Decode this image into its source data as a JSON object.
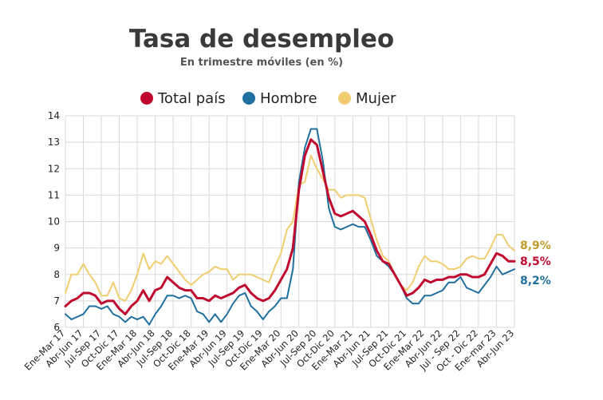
{
  "chart_data": {
    "type": "line",
    "title": "Tasa de desempleo",
    "subtitle": "En trimestre móviles (en %)",
    "ylim": [
      6,
      14
    ],
    "yticks": [
      6,
      7,
      8,
      9,
      10,
      11,
      12,
      13,
      14
    ],
    "grid": true,
    "legend_position": "top",
    "x": [
      "Ene-Mar 17",
      "Feb-Abr 17",
      "Mar-May 17",
      "Abr-Jun 17",
      "May-Jul 17",
      "Jun-Ago 17",
      "Jul-Sep 17",
      "Ago-Oct 17",
      "Sep-Nov 17",
      "Oct-Dic 17",
      "Nov-Ene 18",
      "Dic-Feb 18",
      "Ene-Mar 18",
      "Feb-Abr 18",
      "Mar-May 18",
      "Abr-Jun 18",
      "May-Jul 18",
      "Jun-Ago 18",
      "Jul-Sep 18",
      "Ago-Oct 18",
      "Sep-Nov 18",
      "Oct-Dic 18",
      "Nov-Ene 19",
      "Dic-Feb 19",
      "Ene-Mar 19",
      "Feb-Abr 19",
      "Mar-May 19",
      "Abr-Jun 19",
      "May-Jul 19",
      "Jun-Ago 19",
      "Jul-Sep 19",
      "Ago-Oct 19",
      "Sep-Nov 19",
      "Oct-Dic 19",
      "Nov-Ene 20",
      "Dic-Feb 20",
      "Ene-Mar 20",
      "Feb-Abr 20",
      "Mar-May 20",
      "Abr-Jun 20",
      "May-Jul 20",
      "Jun-Ago 20",
      "Jul-Sep 20",
      "Ago-Oct 20",
      "Sep-Nov 20",
      "Oct-Dic 20",
      "Nov-Ene 21",
      "Dic-Feb 21",
      "Ene-Mar 21",
      "Feb-Abr 21",
      "Mar-May 21",
      "Abr-Jun 21",
      "May-Jul 21",
      "Jun-Ago 21",
      "Jul-Sep 21",
      "Ago-Oct 21",
      "Sep-Nov 21",
      "Oct-Dic 21",
      "Nov-Ene 22",
      "Dic-Feb 22",
      "Ene-Mar 22",
      "Feb-Abr 22",
      "Mar-May 22",
      "Abr-Jun 22",
      "May-Jul 22",
      "Jun-Ago 22",
      "Jul - Sep 22",
      "Ago-Oct 22",
      "Sep-Nov 22",
      "Oct - Dic 22",
      "Nov-Ene 23",
      "Dic-Feb 23",
      "Ene-mar 23",
      "Feb-Abr 23",
      "Mar-May 23",
      "Abr-Jun 23"
    ],
    "xtick_labels": [
      {
        "index": 0,
        "label": "Ene-Mar 17"
      },
      {
        "index": 3,
        "label": "Abr-Jun 17"
      },
      {
        "index": 6,
        "label": "Jul-Sep 17"
      },
      {
        "index": 9,
        "label": "Oct-Dic 17"
      },
      {
        "index": 12,
        "label": "Ene-Mar 18"
      },
      {
        "index": 15,
        "label": "Abr-Jun 18"
      },
      {
        "index": 18,
        "label": "Jul-Sep 18"
      },
      {
        "index": 21,
        "label": "Oct-Dic 18"
      },
      {
        "index": 24,
        "label": "Ene-Mar 19"
      },
      {
        "index": 27,
        "label": "Abr-Jun 19"
      },
      {
        "index": 30,
        "label": "Jul-Sep 19"
      },
      {
        "index": 33,
        "label": "Oct-Dic 19"
      },
      {
        "index": 36,
        "label": "Ene-Mar 20"
      },
      {
        "index": 39,
        "label": "Abr-Jun 20"
      },
      {
        "index": 42,
        "label": "Jul-Sep 20"
      },
      {
        "index": 45,
        "label": "Oct-Dic 20"
      },
      {
        "index": 48,
        "label": "Ene-Mar 21"
      },
      {
        "index": 51,
        "label": "Abr-Jun 21"
      },
      {
        "index": 54,
        "label": "Jul-Sep 21"
      },
      {
        "index": 57,
        "label": "Oct-Dic 21"
      },
      {
        "index": 60,
        "label": "Ene-Mar 22"
      },
      {
        "index": 63,
        "label": "Abr-Jun 22"
      },
      {
        "index": 66,
        "label": "Jul - Sep 22"
      },
      {
        "index": 69,
        "label": "Oct - Dic 22"
      },
      {
        "index": 72,
        "label": "Ene-mar 23"
      },
      {
        "index": 75,
        "label": "Abr-Jun 23"
      }
    ],
    "series": [
      {
        "name": "Total país",
        "color": "#c0092f",
        "values": [
          6.8,
          7.0,
          7.1,
          7.3,
          7.3,
          7.2,
          6.9,
          7.0,
          7.0,
          6.7,
          6.5,
          6.8,
          7.0,
          7.4,
          7.0,
          7.4,
          7.5,
          7.9,
          7.7,
          7.5,
          7.4,
          7.4,
          7.1,
          7.1,
          7.0,
          7.2,
          7.1,
          7.2,
          7.3,
          7.5,
          7.6,
          7.3,
          7.1,
          7.0,
          7.1,
          7.4,
          7.8,
          8.2,
          9.0,
          11.2,
          12.5,
          13.1,
          12.9,
          11.9,
          10.9,
          10.3,
          10.2,
          10.3,
          10.4,
          10.2,
          10.0,
          9.5,
          8.9,
          8.5,
          8.4,
          8.0,
          7.6,
          7.2,
          7.3,
          7.5,
          7.8,
          7.7,
          7.8,
          7.8,
          7.9,
          7.9,
          8.0,
          8.0,
          7.9,
          7.9,
          8.0,
          8.4,
          8.8,
          8.7,
          8.5,
          8.5
        ],
        "end_label": "8,5%"
      },
      {
        "name": "Hombre",
        "color": "#1f6f9f",
        "values": [
          6.5,
          6.3,
          6.4,
          6.5,
          6.8,
          6.8,
          6.7,
          6.8,
          6.5,
          6.4,
          6.2,
          6.4,
          6.3,
          6.4,
          6.1,
          6.5,
          6.8,
          7.2,
          7.2,
          7.1,
          7.2,
          7.1,
          6.6,
          6.5,
          6.2,
          6.5,
          6.2,
          6.5,
          6.9,
          7.2,
          7.3,
          6.8,
          6.6,
          6.3,
          6.6,
          6.8,
          7.1,
          7.1,
          8.2,
          11.5,
          12.8,
          13.5,
          13.5,
          12.3,
          10.5,
          9.8,
          9.7,
          9.8,
          9.9,
          9.8,
          9.8,
          9.3,
          8.7,
          8.5,
          8.3,
          8.0,
          7.6,
          7.1,
          6.9,
          6.9,
          7.2,
          7.2,
          7.3,
          7.4,
          7.7,
          7.7,
          7.9,
          7.5,
          7.4,
          7.3,
          7.6,
          7.9,
          8.3,
          8.0,
          8.1,
          8.2
        ],
        "end_label": "8,2%"
      },
      {
        "name": "Mujer",
        "color": "#f0cd6e",
        "values": [
          7.3,
          8.0,
          8.0,
          8.4,
          8.0,
          7.7,
          7.2,
          7.2,
          7.7,
          7.1,
          7.0,
          7.4,
          8.0,
          8.8,
          8.2,
          8.5,
          8.4,
          8.7,
          8.4,
          8.1,
          7.8,
          7.6,
          7.8,
          8.0,
          8.1,
          8.3,
          8.2,
          8.2,
          7.8,
          8.0,
          8.0,
          8.0,
          7.9,
          7.8,
          7.7,
          8.3,
          8.8,
          9.7,
          10.0,
          11.4,
          11.5,
          12.5,
          12.0,
          11.6,
          11.2,
          11.2,
          10.9,
          11.0,
          11.0,
          11.0,
          10.9,
          10.1,
          9.3,
          8.7,
          8.5,
          8.0,
          7.6,
          7.4,
          7.7,
          8.3,
          8.7,
          8.5,
          8.5,
          8.4,
          8.2,
          8.2,
          8.3,
          8.6,
          8.7,
          8.6,
          8.6,
          9.0,
          9.5,
          9.5,
          9.1,
          8.9
        ],
        "end_label": "8,9%"
      }
    ]
  }
}
